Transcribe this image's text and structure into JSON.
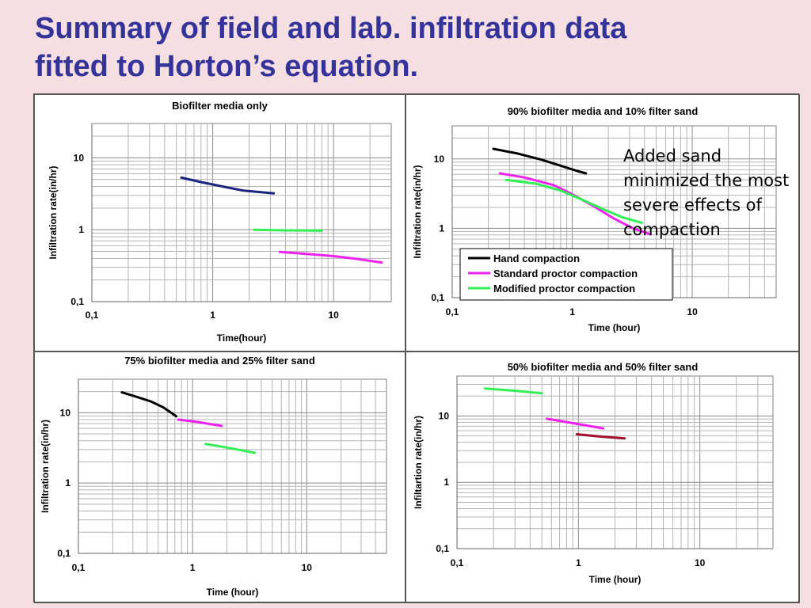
{
  "slide": {
    "title_lines": [
      "Summary of field  and lab. infiltration data",
      "fitted to Horton’s equation."
    ],
    "background": "#f5dfe3",
    "title_color": "#333399"
  },
  "callout": {
    "lines": [
      "Added sand",
      "minimized the most",
      "severe effects of",
      "compaction"
    ]
  },
  "chart_data": [
    {
      "type": "line",
      "title": "Biofilter media only",
      "xlabel": "Time(hour)",
      "ylabel": "Infiltration rate(in/hr)",
      "xscale": "log",
      "yscale": "log",
      "xlim": [
        0.1,
        30
      ],
      "ylim": [
        0.1,
        30
      ],
      "xticks": [
        0.1,
        1,
        10
      ],
      "xtick_labels": [
        "0,1",
        "1",
        "10"
      ],
      "yticks": [
        0.1,
        1,
        10
      ],
      "ytick_labels": [
        "0,1",
        "1",
        "10"
      ],
      "grid": true,
      "series": [
        {
          "color": "#1a237e",
          "points": [
            [
              0.55,
              5.3
            ],
            [
              0.8,
              4.6
            ],
            [
              1.2,
              4.0
            ],
            [
              1.8,
              3.5
            ],
            [
              3.2,
              3.2
            ]
          ]
        },
        {
          "color": "#33ee55",
          "points": [
            [
              2.2,
              1.0
            ],
            [
              4.0,
              0.98
            ],
            [
              8.0,
              0.97
            ]
          ]
        },
        {
          "color": "#ee22ee",
          "points": [
            [
              3.6,
              0.49
            ],
            [
              6.0,
              0.46
            ],
            [
              10.0,
              0.43
            ],
            [
              16.0,
              0.39
            ],
            [
              25.0,
              0.35
            ]
          ]
        }
      ]
    },
    {
      "type": "line",
      "title": "90% biofilter media and 10% filter sand",
      "xlabel": "Time (hour)",
      "ylabel": "Infiltration rate(in/hr)",
      "xscale": "log",
      "yscale": "log",
      "xlim": [
        0.1,
        50
      ],
      "ylim": [
        0.1,
        30
      ],
      "xticks": [
        0.1,
        1,
        10
      ],
      "xtick_labels": [
        "0,1",
        "1",
        "10"
      ],
      "yticks": [
        0.1,
        1,
        10
      ],
      "ytick_labels": [
        "0,1",
        "1",
        "10"
      ],
      "grid": true,
      "legend": "bottom-center",
      "series": [
        {
          "name": "Hand compaction",
          "color": "#000000",
          "points": [
            [
              0.22,
              14.0
            ],
            [
              0.35,
              12.0
            ],
            [
              0.55,
              9.8
            ],
            [
              0.8,
              8.0
            ],
            [
              1.1,
              6.7
            ],
            [
              1.3,
              6.2
            ]
          ]
        },
        {
          "name": "Standard proctor compaction",
          "color": "#ee22ee",
          "points": [
            [
              0.25,
              6.2
            ],
            [
              0.4,
              5.4
            ],
            [
              0.7,
              4.2
            ],
            [
              1.0,
              3.1
            ],
            [
              1.5,
              2.1
            ],
            [
              2.2,
              1.4
            ],
            [
              3.2,
              1.0
            ],
            [
              4.5,
              0.82
            ]
          ]
        },
        {
          "name": "Modified proctor compaction",
          "color": "#33ee55",
          "points": [
            [
              0.28,
              5.0
            ],
            [
              0.5,
              4.4
            ],
            [
              0.8,
              3.5
            ],
            [
              1.2,
              2.6
            ],
            [
              1.8,
              1.9
            ],
            [
              2.6,
              1.45
            ],
            [
              3.8,
              1.2
            ]
          ]
        }
      ]
    },
    {
      "type": "line",
      "title": "75% biofilter media and 25% filter sand",
      "xlabel": "Time (hour)",
      "ylabel": "Infiltration rate(in/hr)",
      "xscale": "log",
      "yscale": "log",
      "xlim": [
        0.1,
        50
      ],
      "ylim": [
        0.1,
        30
      ],
      "xticks": [
        0.1,
        1,
        10
      ],
      "xtick_labels": [
        "0,1",
        "1",
        "10"
      ],
      "yticks": [
        0.1,
        1,
        10
      ],
      "ytick_labels": [
        "0,1",
        "1",
        "10"
      ],
      "grid": true,
      "series": [
        {
          "color": "#000000",
          "points": [
            [
              0.24,
              19.5
            ],
            [
              0.3,
              17.5
            ],
            [
              0.43,
              14.5
            ],
            [
              0.55,
              12.0
            ],
            [
              0.68,
              9.5
            ],
            [
              0.72,
              8.9
            ]
          ]
        },
        {
          "color": "#ee22ee",
          "points": [
            [
              0.75,
              8.0
            ],
            [
              1.1,
              7.4
            ],
            [
              1.8,
              6.5
            ]
          ]
        },
        {
          "color": "#33ee55",
          "points": [
            [
              1.3,
              3.6
            ],
            [
              2.0,
              3.2
            ],
            [
              3.5,
              2.7
            ]
          ]
        }
      ]
    },
    {
      "type": "line",
      "title": "50% biofilter media and 50% filter sand",
      "xlabel": "Time (hour)",
      "ylabel": "Infiltartion rate(in/hr)",
      "xscale": "log",
      "yscale": "log",
      "xlim": [
        0.1,
        40
      ],
      "ylim": [
        0.1,
        40
      ],
      "xticks": [
        0.1,
        1,
        10
      ],
      "xtick_labels": [
        "0,1",
        "1",
        "10"
      ],
      "yticks": [
        0.1,
        1,
        10
      ],
      "ytick_labels": [
        "0,1",
        "1",
        "10"
      ],
      "grid": true,
      "series": [
        {
          "color": "#33ee55",
          "points": [
            [
              0.17,
              26.0
            ],
            [
              0.3,
              24.0
            ],
            [
              0.5,
              22.0
            ]
          ]
        },
        {
          "color": "#ee22ee",
          "points": [
            [
              0.55,
              9.1
            ],
            [
              0.9,
              7.8
            ],
            [
              1.6,
              6.5
            ]
          ]
        },
        {
          "color": "#a0102c",
          "points": [
            [
              0.97,
              5.3
            ],
            [
              1.5,
              4.9
            ],
            [
              2.4,
              4.6
            ]
          ]
        }
      ]
    }
  ]
}
